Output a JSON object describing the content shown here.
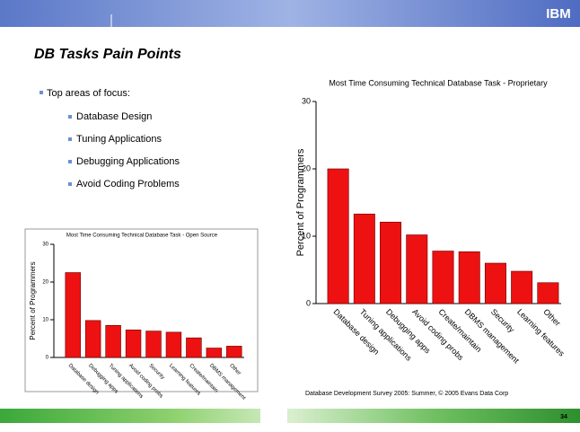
{
  "logo": "IBM",
  "title": "DB Tasks Pain Points",
  "bullets": {
    "main": "Top areas of focus:",
    "sub": [
      "Database Design",
      "Tuning Applications",
      "Debugging Applications",
      "Avoid Coding Problems"
    ]
  },
  "page_number": "34",
  "chart_data": [
    {
      "type": "bar",
      "title": "Most Time Consuming Technical Database Task - Open Source",
      "y_label": "Percent of Programmers",
      "categories": [
        "Database design",
        "Debugging apps",
        "Tuning applications",
        "Avoid coding probs",
        "Security",
        "Learning features",
        "Create/maintain",
        "DBMS management",
        "Other"
      ],
      "values": [
        22.5,
        9.8,
        8.5,
        7.3,
        7.0,
        6.7,
        5.2,
        2.5,
        3.0
      ],
      "color": "#ee1111",
      "ylim": [
        0,
        30
      ],
      "yticks": [
        0,
        10,
        20,
        30
      ]
    },
    {
      "type": "bar",
      "title": "Most Time Consuming Technical Database Task - Proprietary",
      "y_label": "Percent of Programmers",
      "categories": [
        "Database design",
        "Tuning applications",
        "Debugging apps",
        "Avoid coding probs",
        "Create/maintain",
        "DBMS management",
        "Security",
        "Learning features",
        "Other"
      ],
      "values": [
        20,
        13.3,
        12.1,
        10.2,
        7.8,
        7.7,
        6.0,
        4.8,
        3.1
      ],
      "color": "#ee1111",
      "ylim": [
        0,
        30
      ],
      "yticks": [
        0,
        10,
        20,
        30
      ],
      "footnote": "Database Development Survey 2005: Summer, © 2005 Evans Data Corp"
    }
  ]
}
